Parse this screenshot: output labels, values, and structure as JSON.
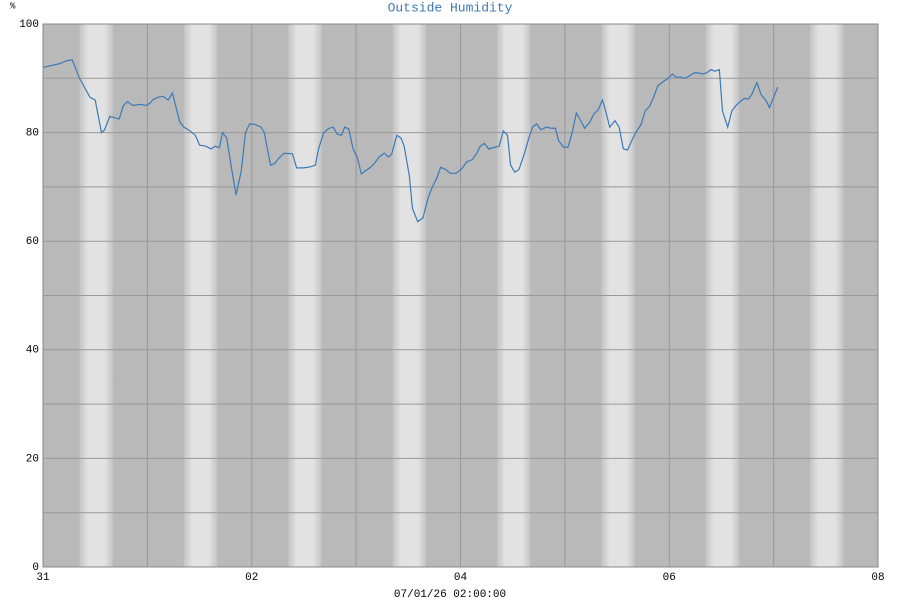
{
  "chart_data": {
    "type": "line",
    "title": "Outside Humidity",
    "y_label": "%",
    "x_label": "07/01/26 02:00:00",
    "color": "#3a7ab8",
    "xlim": [
      0,
      8
    ],
    "xticks": [
      {
        "value": 0,
        "label": "31"
      },
      {
        "value": 2,
        "label": "02"
      },
      {
        "value": 4,
        "label": "04"
      },
      {
        "value": 6,
        "label": "06"
      },
      {
        "value": 8,
        "label": "08"
      }
    ],
    "ylim": [
      0,
      100
    ],
    "yticks": [
      0,
      20,
      40,
      60,
      80,
      100
    ],
    "grid": true,
    "x": [
      0,
      0.16,
      0.22,
      0.28,
      0.35,
      0.45,
      0.5,
      0.56,
      0.59,
      0.64,
      0.73,
      0.77,
      0.81,
      0.86,
      0.93,
      0.99,
      1.03,
      1.05,
      1.1,
      1.15,
      1.2,
      1.24,
      1.27,
      1.31,
      1.35,
      1.41,
      1.46,
      1.5,
      1.56,
      1.61,
      1.65,
      1.69,
      1.72,
      1.76,
      1.81,
      1.85,
      1.9,
      1.94,
      1.98,
      2.03,
      2.09,
      2.12,
      2.16,
      2.18,
      2.22,
      2.26,
      2.31,
      2.39,
      2.43,
      2.5,
      2.56,
      2.61,
      2.64,
      2.69,
      2.74,
      2.78,
      2.82,
      2.86,
      2.89,
      2.93,
      2.97,
      3.01,
      3.05,
      3.09,
      3.13,
      3.17,
      3.22,
      3.27,
      3.31,
      3.34,
      3.39,
      3.43,
      3.46,
      3.51,
      3.54,
      3.59,
      3.64,
      3.69,
      3.73,
      3.77,
      3.81,
      3.86,
      3.9,
      3.96,
      4.01,
      4.06,
      4.11,
      4.15,
      4.19,
      4.23,
      4.27,
      4.33,
      4.37,
      4.41,
      4.45,
      4.48,
      4.52,
      4.56,
      4.61,
      4.65,
      4.69,
      4.73,
      4.77,
      4.82,
      4.87,
      4.91,
      4.94,
      4.99,
      5.03,
      5.07,
      5.11,
      5.14,
      5.19,
      5.24,
      5.28,
      5.32,
      5.36,
      5.39,
      5.43,
      5.48,
      5.52,
      5.56,
      5.6,
      5.64,
      5.68,
      5.73,
      5.77,
      5.81,
      5.85,
      5.89,
      5.95,
      5.99,
      6.03,
      6.06,
      6.11,
      6.15,
      6.19,
      6.24,
      6.28,
      6.32,
      6.36,
      6.4,
      6.44,
      6.48,
      6.51,
      6.56,
      6.6,
      6.64,
      6.68,
      6.72,
      6.76,
      6.79,
      6.84,
      6.88,
      6.93,
      6.96,
      7.0,
      7.04
    ],
    "values": [
      92,
      92.7,
      93.2,
      93.4,
      90,
      86.5,
      86,
      80,
      80.5,
      83,
      82.5,
      85,
      85.7,
      85,
      85.2,
      85,
      85.5,
      86,
      86.5,
      86.7,
      86,
      87.3,
      85,
      82,
      81,
      80.3,
      79.5,
      77.7,
      77.5,
      77,
      77.5,
      77.2,
      80,
      79,
      73,
      68.5,
      73,
      80,
      81.6,
      81.5,
      81,
      80,
      76,
      74,
      74.3,
      75.3,
      76.2,
      76.1,
      73.5,
      73.5,
      73.7,
      74,
      77,
      80,
      80.8,
      81,
      79.7,
      79.5,
      81,
      80.7,
      77,
      75.5,
      72.4,
      73,
      73.5,
      74.2,
      75.5,
      76.2,
      75.5,
      76,
      79.5,
      79,
      77.5,
      72,
      66,
      63.6,
      64.3,
      68,
      70,
      71.5,
      73.6,
      73.2,
      72.5,
      72.5,
      73.3,
      74.6,
      75,
      76,
      77.5,
      78,
      77,
      77.3,
      77.5,
      80.3,
      79.5,
      74,
      72.7,
      73.2,
      76,
      78.7,
      81,
      81.6,
      80.5,
      81,
      80.8,
      80.8,
      78.5,
      77.3,
      77.3,
      80,
      83.6,
      82.6,
      80.8,
      82,
      83.5,
      84.2,
      86,
      84,
      81,
      82.2,
      81,
      77,
      76.8,
      78.5,
      80,
      81.5,
      84,
      84.8,
      86.5,
      88.6,
      89.5,
      90,
      90.8,
      90.2,
      90.2,
      90,
      90.4,
      91,
      91,
      90.8,
      91,
      91.6,
      91.3,
      91.6,
      84,
      81,
      84,
      85,
      85.7,
      86.3,
      86.2,
      87,
      89.2,
      87,
      85.8,
      84.6,
      86.5,
      88.4
    ]
  }
}
